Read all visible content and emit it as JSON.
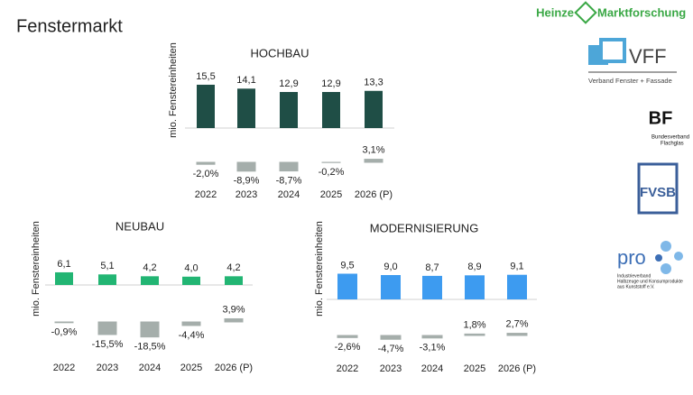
{
  "title": "Fenstermarkt",
  "logos": {
    "heinze": "Heinze",
    "heinze_sub": "Marktforschung",
    "vff": "VFF",
    "vff_sub": "Verband Fenster + Fassade",
    "bf": "BF",
    "bf_sub": [
      "Bundesverband",
      "Flachglas"
    ],
    "fvsb": "FVSB",
    "pro": "pro",
    "pro_sub": [
      "Industrieverband",
      "Halbzeuge und Konsumprodukte",
      "aus Kunststoff e.V."
    ]
  },
  "chart_data": [
    {
      "type": "bar",
      "title": "HOCHBAU",
      "y_label": "mio. Fenstereinheiten",
      "categories": [
        "2022",
        "2023",
        "2024",
        "2025",
        "2026 (P)"
      ],
      "series": [
        {
          "color": "#1f4e46",
          "values": [
            15.5,
            14.1,
            12.9,
            12.9,
            13.3
          ],
          "value_labels": [
            "15,5",
            "14,1",
            "12,9",
            "12,9",
            "13,3"
          ]
        },
        {
          "color": "#a5aeab",
          "values": [
            -2.0,
            -8.9,
            -8.7,
            -0.2,
            3.1
          ],
          "value_labels": [
            "-2,0%",
            "-8,9%",
            "-8,7%",
            "-0,2%",
            "3,1%"
          ]
        }
      ]
    },
    {
      "type": "bar",
      "title": "NEUBAU",
      "y_label": "mio. Fenstereinheiten",
      "categories": [
        "2022",
        "2023",
        "2024",
        "2025",
        "2026 (P)"
      ],
      "series": [
        {
          "color": "#22b573",
          "values": [
            6.1,
            5.1,
            4.2,
            4.0,
            4.2
          ],
          "value_labels": [
            "6,1",
            "5,1",
            "4,2",
            "4,0",
            "4,2"
          ]
        },
        {
          "color": "#a5aeab",
          "values": [
            -0.9,
            -15.5,
            -18.5,
            -4.4,
            3.9
          ],
          "value_labels": [
            "-0,9%",
            "-15,5%",
            "-18,5%",
            "-4,4%",
            "3,9%"
          ]
        }
      ]
    },
    {
      "type": "bar",
      "title": "MODERNISIERUNG",
      "y_label": "mio. Fenstereinheiten",
      "categories": [
        "2022",
        "2023",
        "2024",
        "2025",
        "2026 (P)"
      ],
      "series": [
        {
          "color": "#3d9bf0",
          "values": [
            9.5,
            9.0,
            8.7,
            8.9,
            9.1
          ],
          "value_labels": [
            "9,5",
            "9,0",
            "8,7",
            "8,9",
            "9,1"
          ]
        },
        {
          "color": "#a5aeab",
          "values": [
            -2.6,
            -4.7,
            -3.1,
            1.8,
            2.7
          ],
          "value_labels": [
            "-2,6%",
            "-4,7%",
            "-3,1%",
            "1,8%",
            "2,7%"
          ]
        }
      ]
    }
  ]
}
